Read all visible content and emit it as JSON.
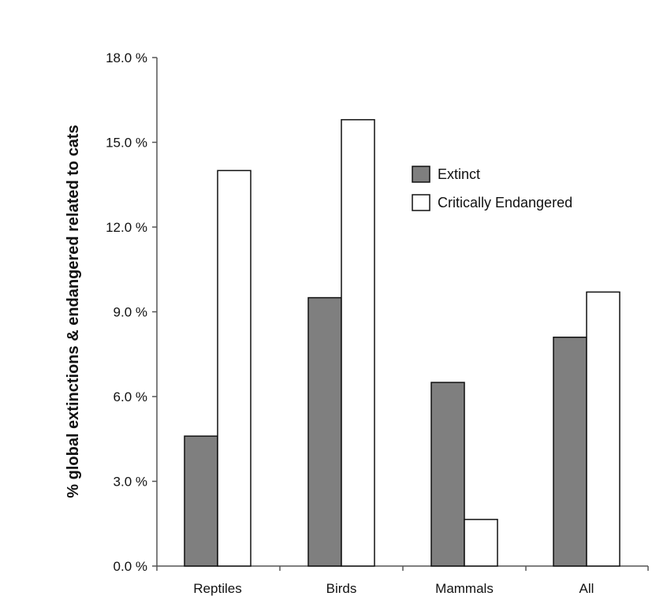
{
  "chart_data": {
    "type": "bar",
    "categories": [
      "Reptiles",
      "Birds",
      "Mammals",
      "All"
    ],
    "series": [
      {
        "name": "Extinct",
        "values": [
          4.6,
          9.5,
          6.5,
          8.1
        ],
        "color": "#7f7f7f"
      },
      {
        "name": "Critically Endangered",
        "values": [
          14.0,
          15.8,
          1.65,
          9.7
        ],
        "color": "#ffffff"
      }
    ],
    "ylabel": "% global extinctions & endangered related to cats",
    "xlabel": "",
    "ylim": [
      0,
      18
    ],
    "yticks": [
      0,
      3,
      6,
      9,
      12,
      15,
      18
    ],
    "ytick_labels": [
      "0.0 %",
      "3.0 %",
      "6.0 %",
      "9.0 %",
      "12.0 %",
      "15.0 %",
      "18.0 %"
    ],
    "legend_position": "top-right",
    "grid": false
  }
}
